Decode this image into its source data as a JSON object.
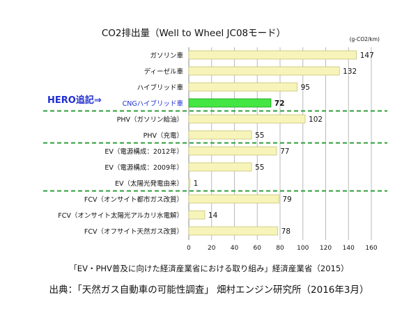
{
  "chart_data": {
    "type": "bar",
    "orientation": "horizontal",
    "title": "CO2排出量（Well to Wheel JC08モード）",
    "unit_label": "(g-CO2/km)",
    "xlim": [
      0,
      160
    ],
    "xticks": [
      "0",
      "20",
      "40",
      "60",
      "80",
      "100",
      "120",
      "140",
      "160"
    ],
    "grid": "vertical",
    "categories": [
      "ガソリン車",
      "ディーゼル車",
      "ハイブリッド車",
      "CNGハイブリッド車",
      "PHV（ガソリン給油）",
      "PHV（充電）",
      "EV（電源構成：2012年）",
      "EV（電源構成：2009年）",
      "EV（太陽光発電由来）",
      "FCV（オンサイト都市ガス改質）",
      "FCV（オンサイト太陽光アルカリ水電解）",
      "FCV（オフサイト天然ガス改質）"
    ],
    "values": [
      147,
      132,
      95,
      72,
      102,
      55,
      77,
      55,
      1,
      79,
      14,
      78
    ],
    "value_labels": [
      "147",
      "132",
      "95",
      "72",
      "102",
      "55",
      "77",
      "55",
      "1",
      "79",
      "14",
      "78"
    ],
    "highlight_index": 3,
    "group_separators_after": [
      3,
      5,
      8
    ],
    "annotation": "HERO追記⇒",
    "colors": {
      "bar": "#f7f4b9",
      "bar_border": "#c8c47a",
      "highlight": "#43e643",
      "highlight_border": "#1a9e1a",
      "separator": "#2e9e3a",
      "annotation": "#1f2dd1",
      "grid": "#b9b9b9"
    }
  },
  "captions": {
    "sub": "「EV・PHV普及に向けた経済産業省における取り組み」経済産業省（2015）",
    "source": "出典：「天然ガス自動車の可能性調査」 畑村エンジン研究所（2016年3月）"
  }
}
